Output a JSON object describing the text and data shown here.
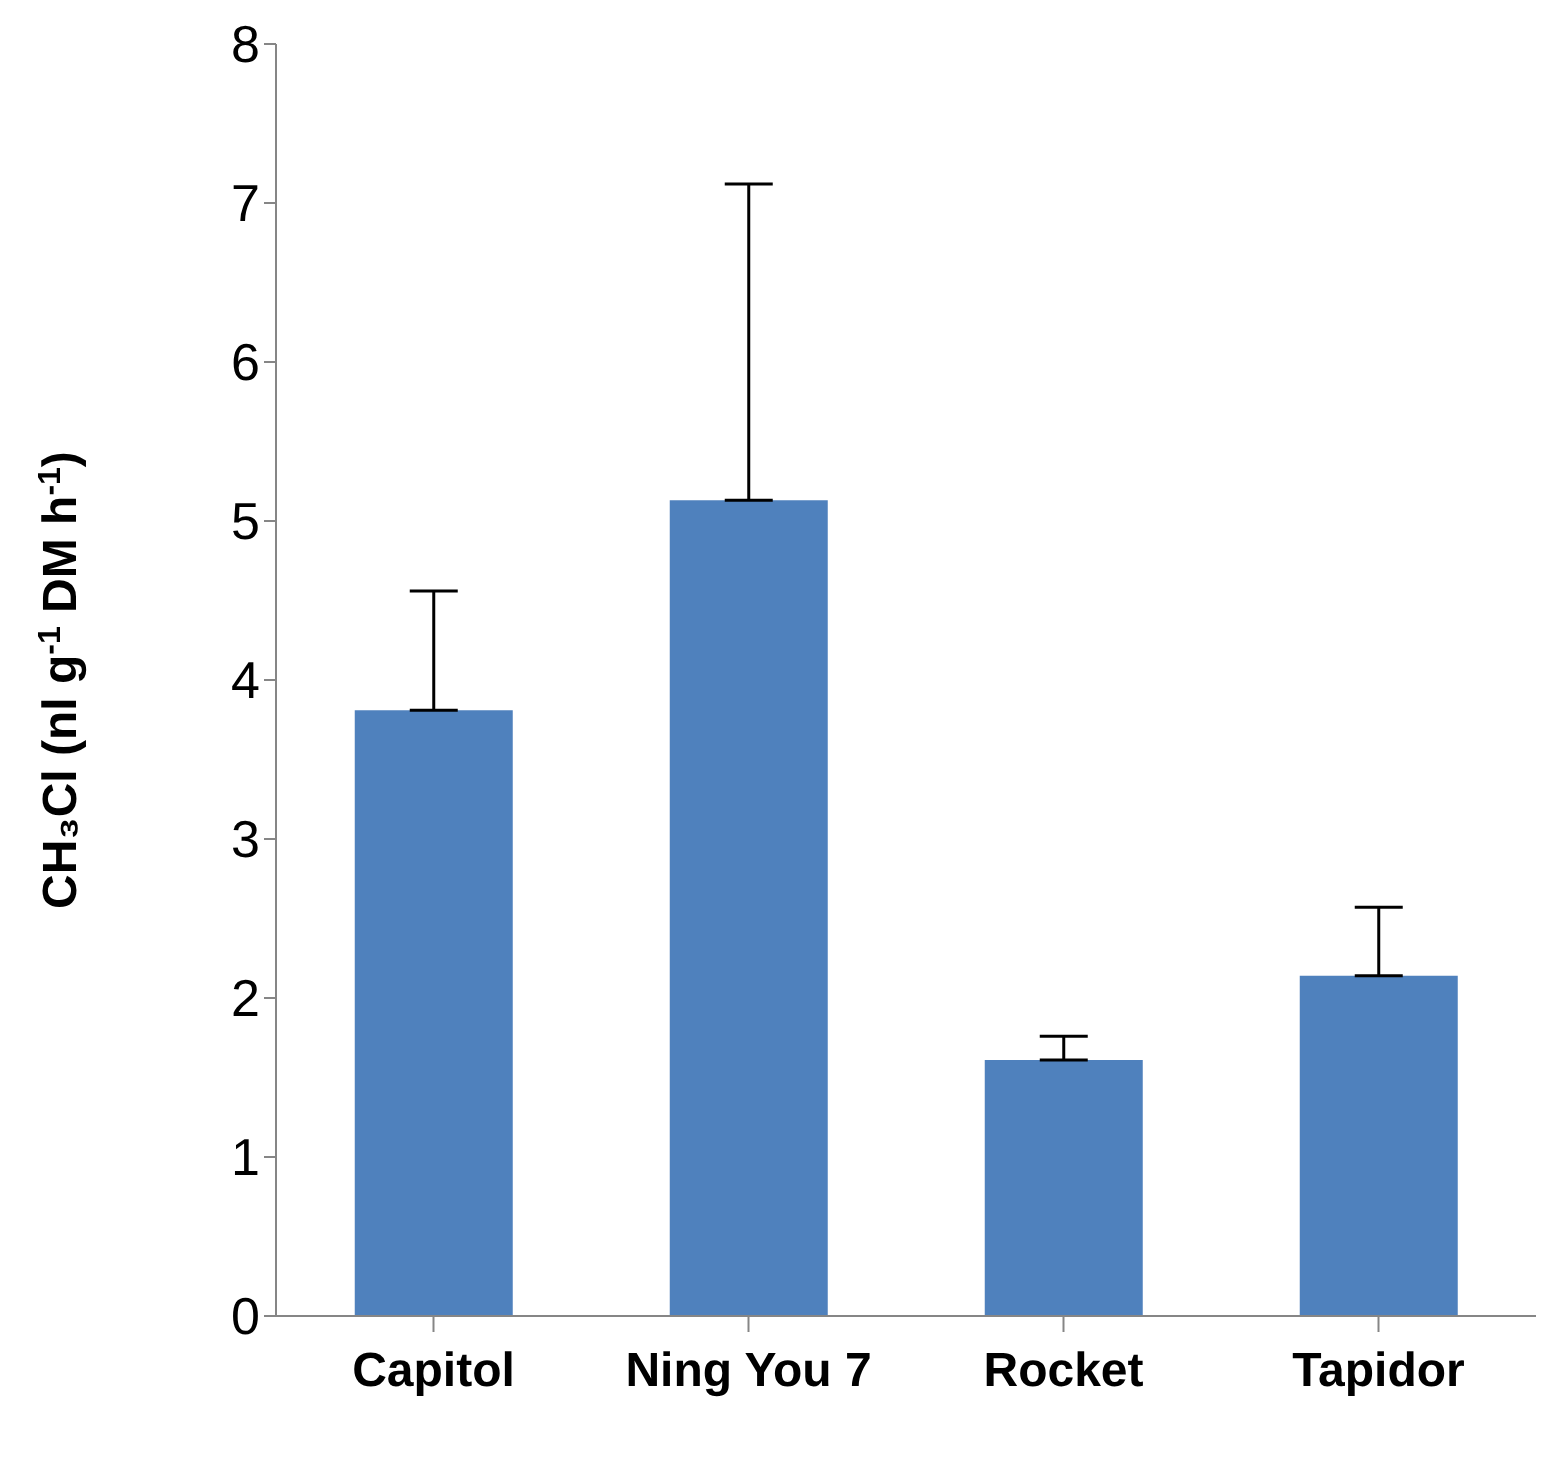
{
  "chart_data": {
    "type": "bar",
    "ylabel": "CH₃Cl (nl g$^{-1}$ DM h$^{-1}$)",
    "categories": [
      "Capitol",
      "Ning You 7",
      "Rocket",
      "Tapidor"
    ],
    "values": [
      3.81,
      5.13,
      1.61,
      2.14
    ],
    "errors": [
      [
        3.81,
        4.56
      ],
      [
        5.13,
        7.12
      ],
      [
        1.61,
        1.76
      ],
      [
        2.14,
        2.57
      ]
    ],
    "color": "#4f81bd",
    "ylim": [
      0,
      8
    ],
    "yticks": [
      0,
      1,
      2,
      3,
      4,
      5,
      6,
      7,
      8
    ],
    "grid": false,
    "legend": false
  }
}
